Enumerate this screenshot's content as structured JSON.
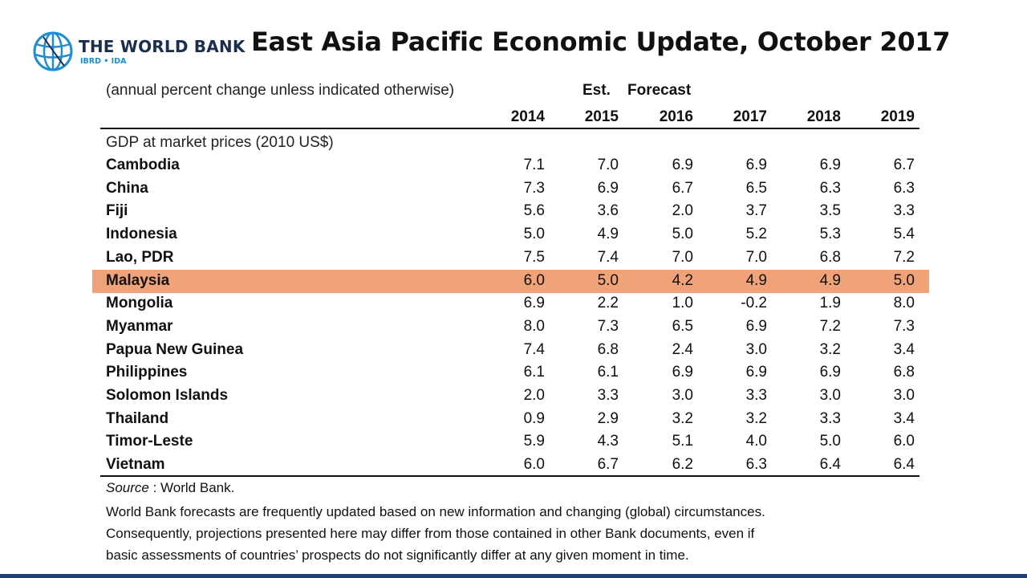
{
  "header": {
    "org_name": "THE WORLD BANK",
    "org_sub": "IBRD • IDA",
    "title": "East Asia Pacific Economic Update, October 2017"
  },
  "table": {
    "note": "(annual percent change unless indicated otherwise)",
    "est_label": "Est.",
    "forecast_label": "Forecast",
    "years": [
      "2014",
      "2015",
      "2016",
      "2017",
      "2018",
      "2019"
    ],
    "section_label": "GDP at market prices (2010 US$)",
    "rows": [
      {
        "country": "Cambodia",
        "values": [
          "7.1",
          "7.0",
          "6.9",
          "6.9",
          "6.9",
          "6.7"
        ]
      },
      {
        "country": "China",
        "values": [
          "7.3",
          "6.9",
          "6.7",
          "6.5",
          "6.3",
          "6.3"
        ]
      },
      {
        "country": "Fiji",
        "values": [
          "5.6",
          "3.6",
          "2.0",
          "3.7",
          "3.5",
          "3.3"
        ]
      },
      {
        "country": "Indonesia",
        "values": [
          "5.0",
          "4.9",
          "5.0",
          "5.2",
          "5.3",
          "5.4"
        ]
      },
      {
        "country": "Lao, PDR",
        "values": [
          "7.5",
          "7.4",
          "7.0",
          "7.0",
          "6.8",
          "7.2"
        ]
      },
      {
        "country": "Malaysia",
        "values": [
          "6.0",
          "5.0",
          "4.2",
          "4.9",
          "4.9",
          "5.0"
        ],
        "highlighted": true
      },
      {
        "country": "Mongolia",
        "values": [
          "6.9",
          "2.2",
          "1.0",
          "-0.2",
          "1.9",
          "8.0"
        ]
      },
      {
        "country": "Myanmar",
        "values": [
          "8.0",
          "7.3",
          "6.5",
          "6.9",
          "7.2",
          "7.3"
        ]
      },
      {
        "country": "Papua New Guinea",
        "values": [
          "7.4",
          "6.8",
          "2.4",
          "3.0",
          "3.2",
          "3.4"
        ]
      },
      {
        "country": "Philippines",
        "values": [
          "6.1",
          "6.1",
          "6.9",
          "6.9",
          "6.9",
          "6.8"
        ]
      },
      {
        "country": "Solomon Islands",
        "values": [
          "2.0",
          "3.3",
          "3.0",
          "3.3",
          "3.0",
          "3.0"
        ]
      },
      {
        "country": "Thailand",
        "values": [
          "0.9",
          "2.9",
          "3.2",
          "3.2",
          "3.3",
          "3.4"
        ]
      },
      {
        "country": "Timor-Leste",
        "values": [
          "5.9",
          "4.3",
          "5.1",
          "4.0",
          "5.0",
          "6.0"
        ]
      },
      {
        "country": "Vietnam",
        "values": [
          "6.0",
          "6.7",
          "6.2",
          "6.3",
          "6.4",
          "6.4"
        ]
      }
    ]
  },
  "footer": {
    "source_label": "Source",
    "source_text": " : World Bank.",
    "disclaimer_lines": [
      "World Bank forecasts are frequently updated based on new information and changing (global) circumstances.",
      "Consequently, projections presented here may differ from those contained in other Bank documents, even if",
      "basic assessments of countries’ prospects do not significantly differ at any given moment in time."
    ]
  },
  "colors": {
    "highlight": "#f0a378",
    "brand_navy": "#1a2e4f",
    "brand_blue": "#1e8dd2"
  }
}
